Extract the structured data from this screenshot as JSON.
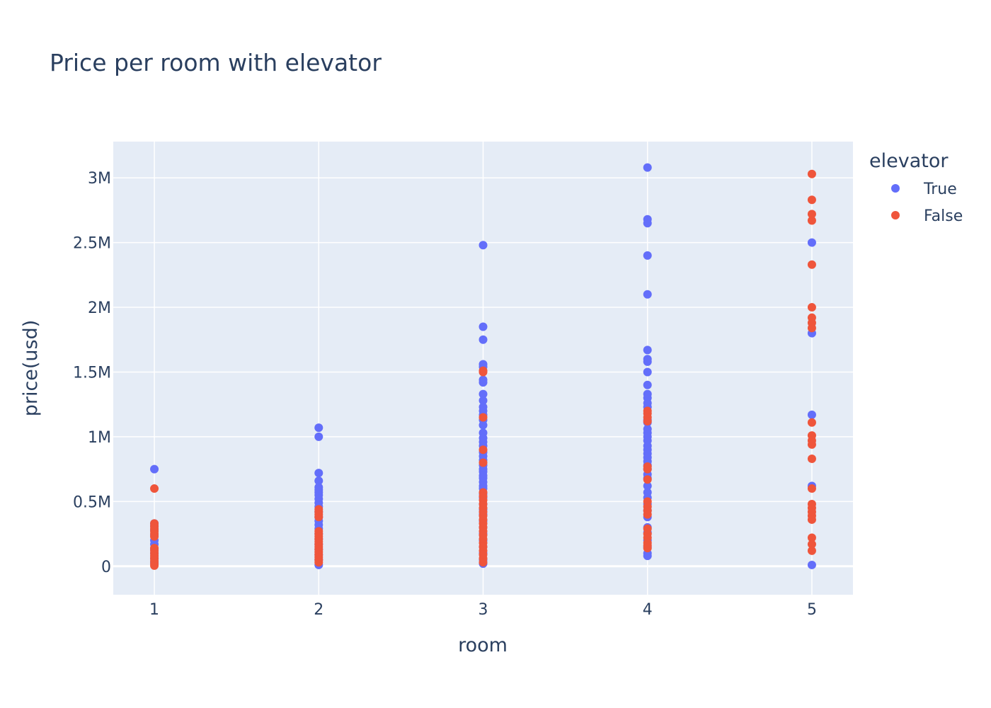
{
  "chart_data": {
    "type": "scatter",
    "title": "Price per room with elevator",
    "xlabel": "room",
    "ylabel": "price(usd)",
    "xlim": [
      0.75,
      5.25
    ],
    "ylim": [
      -220000,
      3280000
    ],
    "xticks": [
      1,
      2,
      3,
      4,
      5
    ],
    "xtick_labels": [
      "1",
      "2",
      "3",
      "4",
      "5"
    ],
    "yticks": [
      0,
      500000,
      1000000,
      1500000,
      2000000,
      2500000,
      3000000
    ],
    "ytick_labels": [
      "0",
      "0.5M",
      "1M",
      "1.5M",
      "2M",
      "2.5M",
      "3M"
    ],
    "grid": true,
    "legend": {
      "title": "elevator",
      "position": "right"
    },
    "series": [
      {
        "name": "True",
        "color": "#636efa",
        "points": [
          [
            1,
            750000
          ],
          [
            1,
            330000
          ],
          [
            1,
            310000
          ],
          [
            1,
            280000
          ],
          [
            1,
            240000
          ],
          [
            1,
            200000
          ],
          [
            1,
            170000
          ],
          [
            1,
            130000
          ],
          [
            1,
            100000
          ],
          [
            1,
            60000
          ],
          [
            1,
            30000
          ],
          [
            2,
            1070000
          ],
          [
            2,
            1000000
          ],
          [
            2,
            720000
          ],
          [
            2,
            660000
          ],
          [
            2,
            610000
          ],
          [
            2,
            590000
          ],
          [
            2,
            570000
          ],
          [
            2,
            550000
          ],
          [
            2,
            520000
          ],
          [
            2,
            490000
          ],
          [
            2,
            460000
          ],
          [
            2,
            420000
          ],
          [
            2,
            380000
          ],
          [
            2,
            350000
          ],
          [
            2,
            320000
          ],
          [
            2,
            290000
          ],
          [
            2,
            250000
          ],
          [
            2,
            210000
          ],
          [
            2,
            170000
          ],
          [
            2,
            130000
          ],
          [
            2,
            90000
          ],
          [
            2,
            50000
          ],
          [
            2,
            10000
          ],
          [
            3,
            2480000
          ],
          [
            3,
            1850000
          ],
          [
            3,
            1750000
          ],
          [
            3,
            1560000
          ],
          [
            3,
            1540000
          ],
          [
            3,
            1440000
          ],
          [
            3,
            1420000
          ],
          [
            3,
            1330000
          ],
          [
            3,
            1280000
          ],
          [
            3,
            1230000
          ],
          [
            3,
            1200000
          ],
          [
            3,
            1170000
          ],
          [
            3,
            1130000
          ],
          [
            3,
            1090000
          ],
          [
            3,
            1030000
          ],
          [
            3,
            990000
          ],
          [
            3,
            960000
          ],
          [
            3,
            930000
          ],
          [
            3,
            880000
          ],
          [
            3,
            850000
          ],
          [
            3,
            820000
          ],
          [
            3,
            780000
          ],
          [
            3,
            750000
          ],
          [
            3,
            730000
          ],
          [
            3,
            700000
          ],
          [
            3,
            680000
          ],
          [
            3,
            650000
          ],
          [
            3,
            620000
          ],
          [
            3,
            600000
          ],
          [
            3,
            560000
          ],
          [
            3,
            530000
          ],
          [
            3,
            480000
          ],
          [
            3,
            440000
          ],
          [
            3,
            400000
          ],
          [
            3,
            350000
          ],
          [
            3,
            300000
          ],
          [
            3,
            250000
          ],
          [
            3,
            200000
          ],
          [
            3,
            150000
          ],
          [
            3,
            100000
          ],
          [
            3,
            50000
          ],
          [
            3,
            20000
          ],
          [
            4,
            3080000
          ],
          [
            4,
            2680000
          ],
          [
            4,
            2650000
          ],
          [
            4,
            2400000
          ],
          [
            4,
            2100000
          ],
          [
            4,
            1670000
          ],
          [
            4,
            1600000
          ],
          [
            4,
            1580000
          ],
          [
            4,
            1500000
          ],
          [
            4,
            1400000
          ],
          [
            4,
            1330000
          ],
          [
            4,
            1300000
          ],
          [
            4,
            1260000
          ],
          [
            4,
            1230000
          ],
          [
            4,
            1130000
          ],
          [
            4,
            1110000
          ],
          [
            4,
            1060000
          ],
          [
            4,
            1030000
          ],
          [
            4,
            1000000
          ],
          [
            4,
            970000
          ],
          [
            4,
            930000
          ],
          [
            4,
            900000
          ],
          [
            4,
            870000
          ],
          [
            4,
            840000
          ],
          [
            4,
            810000
          ],
          [
            4,
            780000
          ],
          [
            4,
            750000
          ],
          [
            4,
            710000
          ],
          [
            4,
            680000
          ],
          [
            4,
            620000
          ],
          [
            4,
            570000
          ],
          [
            4,
            530000
          ],
          [
            4,
            480000
          ],
          [
            4,
            430000
          ],
          [
            4,
            380000
          ],
          [
            4,
            300000
          ],
          [
            4,
            260000
          ],
          [
            4,
            200000
          ],
          [
            4,
            150000
          ],
          [
            4,
            100000
          ],
          [
            4,
            80000
          ],
          [
            5,
            2500000
          ],
          [
            5,
            1800000
          ],
          [
            5,
            1170000
          ],
          [
            5,
            620000
          ],
          [
            5,
            10000
          ]
        ]
      },
      {
        "name": "False",
        "color": "#ef553b",
        "points": [
          [
            1,
            600000
          ],
          [
            1,
            330000
          ],
          [
            1,
            310000
          ],
          [
            1,
            290000
          ],
          [
            1,
            270000
          ],
          [
            1,
            250000
          ],
          [
            1,
            230000
          ],
          [
            1,
            140000
          ],
          [
            1,
            120000
          ],
          [
            1,
            100000
          ],
          [
            1,
            80000
          ],
          [
            1,
            60000
          ],
          [
            1,
            40000
          ],
          [
            1,
            20000
          ],
          [
            1,
            5000
          ],
          [
            2,
            440000
          ],
          [
            2,
            420000
          ],
          [
            2,
            400000
          ],
          [
            2,
            380000
          ],
          [
            2,
            270000
          ],
          [
            2,
            250000
          ],
          [
            2,
            230000
          ],
          [
            2,
            210000
          ],
          [
            2,
            190000
          ],
          [
            2,
            170000
          ],
          [
            2,
            150000
          ],
          [
            2,
            130000
          ],
          [
            2,
            110000
          ],
          [
            2,
            90000
          ],
          [
            2,
            70000
          ],
          [
            2,
            50000
          ],
          [
            2,
            30000
          ],
          [
            3,
            1510000
          ],
          [
            3,
            1500000
          ],
          [
            3,
            1150000
          ],
          [
            3,
            900000
          ],
          [
            3,
            800000
          ],
          [
            3,
            570000
          ],
          [
            3,
            540000
          ],
          [
            3,
            510000
          ],
          [
            3,
            480000
          ],
          [
            3,
            450000
          ],
          [
            3,
            420000
          ],
          [
            3,
            390000
          ],
          [
            3,
            360000
          ],
          [
            3,
            330000
          ],
          [
            3,
            300000
          ],
          [
            3,
            270000
          ],
          [
            3,
            240000
          ],
          [
            3,
            210000
          ],
          [
            3,
            180000
          ],
          [
            3,
            150000
          ],
          [
            3,
            120000
          ],
          [
            3,
            90000
          ],
          [
            3,
            60000
          ],
          [
            3,
            30000
          ],
          [
            4,
            1200000
          ],
          [
            4,
            1180000
          ],
          [
            4,
            1150000
          ],
          [
            4,
            1120000
          ],
          [
            4,
            770000
          ],
          [
            4,
            750000
          ],
          [
            4,
            670000
          ],
          [
            4,
            500000
          ],
          [
            4,
            460000
          ],
          [
            4,
            430000
          ],
          [
            4,
            400000
          ],
          [
            4,
            290000
          ],
          [
            4,
            250000
          ],
          [
            4,
            220000
          ],
          [
            4,
            180000
          ],
          [
            4,
            160000
          ],
          [
            4,
            140000
          ],
          [
            5,
            3030000
          ],
          [
            5,
            2830000
          ],
          [
            5,
            2720000
          ],
          [
            5,
            2670000
          ],
          [
            5,
            2330000
          ],
          [
            5,
            2000000
          ],
          [
            5,
            1920000
          ],
          [
            5,
            1880000
          ],
          [
            5,
            1840000
          ],
          [
            5,
            1110000
          ],
          [
            5,
            1010000
          ],
          [
            5,
            970000
          ],
          [
            5,
            940000
          ],
          [
            5,
            830000
          ],
          [
            5,
            600000
          ],
          [
            5,
            480000
          ],
          [
            5,
            450000
          ],
          [
            5,
            420000
          ],
          [
            5,
            390000
          ],
          [
            5,
            360000
          ],
          [
            5,
            220000
          ],
          [
            5,
            170000
          ],
          [
            5,
            120000
          ]
        ]
      }
    ]
  }
}
